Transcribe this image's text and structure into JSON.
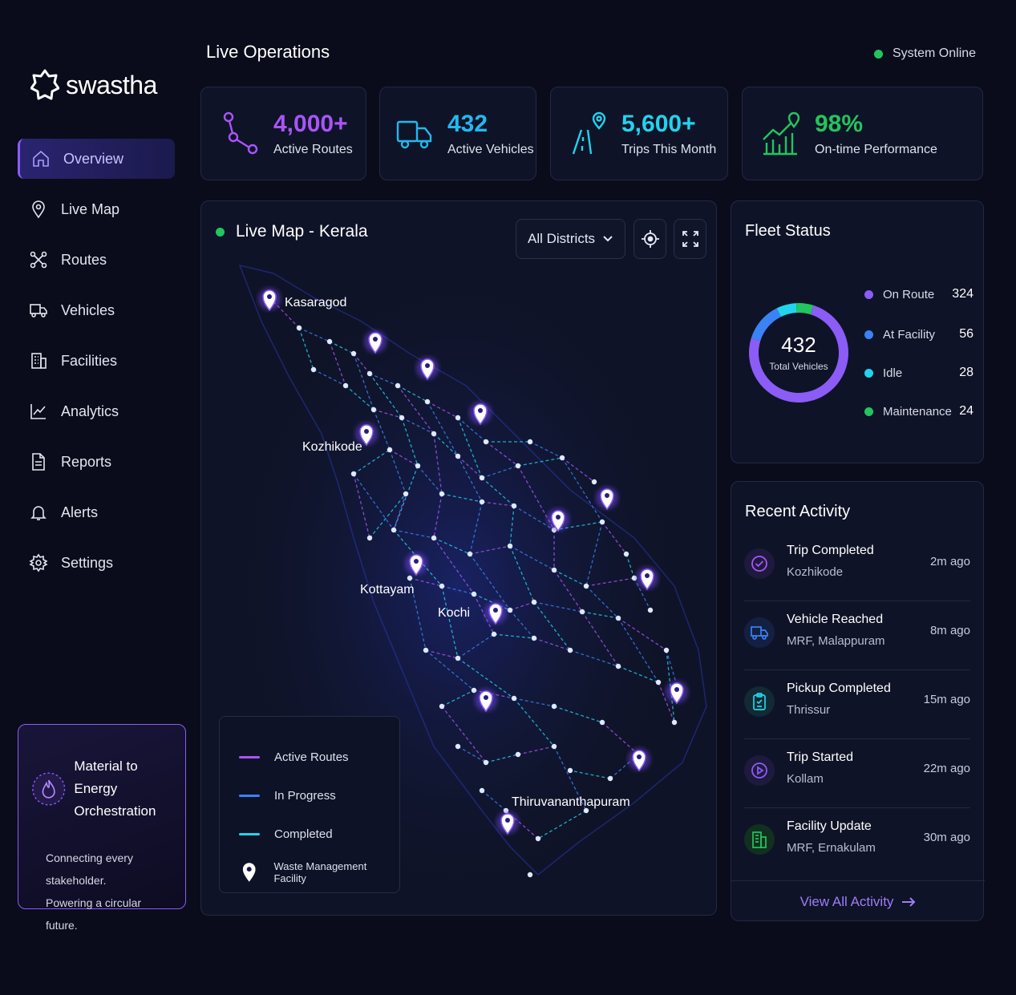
{
  "brand": {
    "name": "swastha"
  },
  "header": {
    "title": "Live Operations",
    "status": "System Online",
    "status_color": "#22c55e"
  },
  "sidebar": {
    "items": [
      {
        "label": "Overview",
        "icon": "home-icon",
        "active": true
      },
      {
        "label": "Live Map",
        "icon": "map-pin-icon"
      },
      {
        "label": "Routes",
        "icon": "routes-icon"
      },
      {
        "label": "Vehicles",
        "icon": "truck-icon"
      },
      {
        "label": "Facilities",
        "icon": "building-icon"
      },
      {
        "label": "Analytics",
        "icon": "chart-line-icon"
      },
      {
        "label": "Reports",
        "icon": "document-icon"
      },
      {
        "label": "Alerts",
        "icon": "bell-icon"
      },
      {
        "label": "Settings",
        "icon": "gear-icon"
      }
    ],
    "promo": {
      "title_line1": "Material to Energy",
      "title_line2": "Orchestration",
      "body_line1": "Connecting every stakeholder.",
      "body_line2": "Powering a circular future."
    }
  },
  "stats": [
    {
      "value": "4,000+",
      "label": "Active Routes",
      "color": "#a855f7",
      "icon": "route-icon"
    },
    {
      "value": "432",
      "label": "Active Vehicles",
      "color": "#22b8f0",
      "icon": "truck-icon"
    },
    {
      "value": "5,600+",
      "label": "Trips This Month",
      "color": "#22d3ee",
      "icon": "road-pin-icon"
    },
    {
      "value": "98%",
      "label": "On-time Performance",
      "color": "#22c55e",
      "icon": "growth-chart-icon"
    }
  ],
  "map": {
    "title": "Live Map - Kerala",
    "district_filter": "All Districts",
    "cities": [
      "Kasaragod",
      "Kozhikode",
      "Kottayam",
      "Kochi",
      "Thiruvananthapuram"
    ],
    "legend": [
      {
        "label": "Active Routes",
        "color": "#a855f7"
      },
      {
        "label": "In Progress",
        "color": "#3b82f6"
      },
      {
        "label": "Completed",
        "color": "#22d3ee"
      },
      {
        "label": "Waste Management Facility",
        "color": "#ffffff"
      }
    ]
  },
  "fleet": {
    "title": "Fleet Status",
    "total": "432",
    "total_label": "Total Vehicles",
    "rows": [
      {
        "label": "On Route",
        "value": "324",
        "color": "#8b5cf6"
      },
      {
        "label": "At Facility",
        "value": "56",
        "color": "#3b82f6"
      },
      {
        "label": "Idle",
        "value": "28",
        "color": "#22d3ee"
      },
      {
        "label": "Maintenance",
        "value": "24",
        "color": "#22c55e"
      }
    ]
  },
  "activity": {
    "title": "Recent Activity",
    "items": [
      {
        "title": "Trip Completed",
        "sub": "Kozhikode",
        "time": "2m ago",
        "icon": "check-circle-icon",
        "color": "#a855f7"
      },
      {
        "title": "Vehicle Reached",
        "sub": "MRF, Malappuram",
        "time": "8m ago",
        "icon": "truck-icon",
        "color": "#3b82f6"
      },
      {
        "title": "Pickup Completed",
        "sub": "Thrissur",
        "time": "15m ago",
        "icon": "clipboard-icon",
        "color": "#22d3ee"
      },
      {
        "title": "Trip Started",
        "sub": "Kollam",
        "time": "22m ago",
        "icon": "play-icon",
        "color": "#8b5cf6"
      },
      {
        "title": "Facility Update",
        "sub": "MRF, Ernakulam",
        "time": "30m ago",
        "icon": "building-icon",
        "color": "#22c55e"
      }
    ],
    "view_all": "View All Activity"
  }
}
